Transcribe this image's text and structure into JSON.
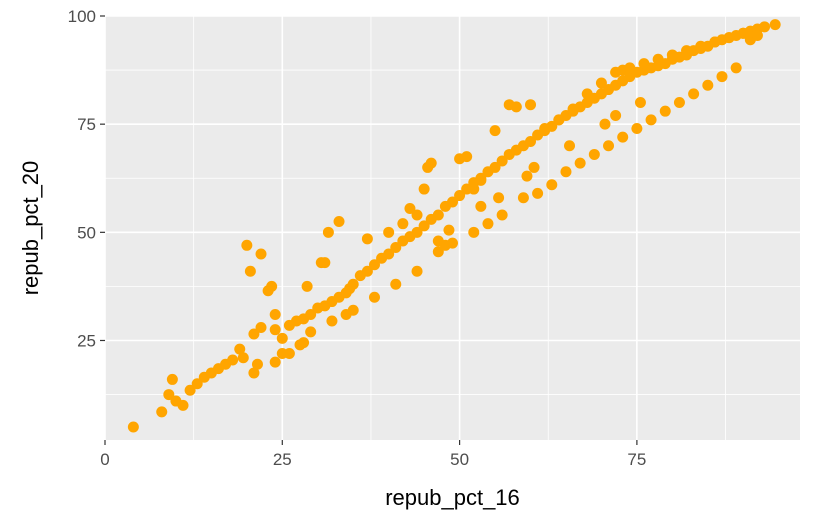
{
  "chart_data": {
    "type": "scatter",
    "xlabel": "repub_pct_16",
    "ylabel": "repub_pct_20",
    "xlim": [
      0,
      100
    ],
    "ylim": [
      2,
      100
    ],
    "x_ticks": [
      0,
      25,
      50,
      75
    ],
    "x_tick_labels": [
      "0",
      "25",
      "50",
      "75"
    ],
    "y_ticks": [
      25,
      50,
      75,
      100
    ],
    "y_tick_labels": [
      "25",
      "50",
      "75",
      "100"
    ],
    "grid": true,
    "legend": "none",
    "point_color": "#FFA500",
    "panel_color": "#EBEBEB",
    "series": [
      {
        "x": [
          4,
          8,
          9,
          9.5,
          10,
          11,
          12,
          13,
          14,
          15,
          16,
          17,
          18,
          19,
          19.5,
          21,
          21.5,
          20,
          20.5,
          22,
          23,
          23.5,
          24,
          25,
          26,
          27,
          28,
          29,
          30,
          31,
          32,
          33,
          28.5,
          30.5,
          31.5,
          33,
          34,
          35,
          36,
          37,
          38,
          39,
          40,
          41,
          42,
          43,
          44,
          45,
          46,
          47,
          48,
          49,
          50,
          51,
          52,
          53,
          54,
          55,
          56,
          57,
          58,
          59,
          60,
          61,
          62,
          63,
          64,
          65,
          66,
          67,
          68,
          69,
          70,
          71,
          72,
          73,
          74,
          75,
          76,
          77,
          78,
          79,
          80,
          81,
          82,
          83,
          84,
          85,
          86,
          87,
          88,
          89,
          90,
          91,
          92,
          93,
          94.5,
          21,
          22,
          24,
          25,
          28,
          31,
          34,
          34.5,
          37,
          43,
          45,
          46,
          44,
          45.5,
          50,
          51,
          52,
          53,
          55,
          57,
          58,
          60,
          62,
          64,
          66,
          68,
          70,
          72,
          73,
          74,
          76,
          78,
          80,
          82,
          84,
          86,
          88,
          90,
          91,
          92,
          24,
          26,
          27.5,
          29,
          32,
          35,
          38,
          41,
          44,
          47,
          48,
          49,
          52,
          54,
          56,
          59,
          61,
          63,
          65,
          67,
          69,
          71,
          73,
          75,
          77,
          79,
          81,
          83,
          85,
          87,
          89,
          40,
          42,
          47,
          48.5,
          53,
          55.5,
          59.5,
          60.5,
          65.5,
          70.5,
          72,
          75.5
        ],
        "y": [
          5,
          8.5,
          12.5,
          16,
          11,
          10,
          13.5,
          15,
          16.5,
          17.5,
          18.5,
          19.5,
          20.5,
          23,
          21,
          17.5,
          19.5,
          47,
          41,
          45,
          36.5,
          37.5,
          27.5,
          25.5,
          28.5,
          29.5,
          30,
          31,
          32.5,
          33,
          34,
          35,
          37.5,
          43,
          50,
          52.5,
          36,
          38,
          40,
          41,
          42.5,
          44,
          45,
          46.5,
          48,
          49,
          50,
          51.5,
          53,
          54,
          56,
          57,
          58.5,
          60,
          61.5,
          62.5,
          64,
          65,
          66.5,
          68,
          69,
          70,
          71,
          72.5,
          73.5,
          74.5,
          76,
          77,
          78,
          79,
          80,
          81,
          82,
          83,
          84,
          85,
          86,
          87,
          87.5,
          88,
          88.5,
          89,
          90,
          90.5,
          91,
          92,
          92.5,
          93,
          94,
          94.5,
          95,
          95.5,
          96,
          96.5,
          97,
          97.5,
          98,
          26.5,
          28,
          31,
          22,
          24.5,
          43,
          31,
          37,
          48.5,
          55.5,
          60,
          66,
          54,
          65,
          67,
          67.5,
          60,
          62,
          73.5,
          79.5,
          79,
          79.5,
          74,
          76,
          78.5,
          82,
          84.5,
          87,
          87.5,
          88,
          89,
          90,
          91,
          92,
          93,
          94,
          95,
          96,
          94.5,
          95.5,
          20,
          22,
          24,
          27,
          29.5,
          32,
          35,
          38,
          41,
          45.5,
          47,
          47.5,
          50,
          52,
          54,
          58,
          59,
          61,
          64,
          66,
          68,
          70,
          72,
          74,
          76,
          78,
          80,
          82,
          84,
          86,
          88,
          50,
          52,
          48,
          50.5,
          56,
          58,
          63,
          65,
          70,
          75,
          77,
          80
        ]
      }
    ]
  }
}
